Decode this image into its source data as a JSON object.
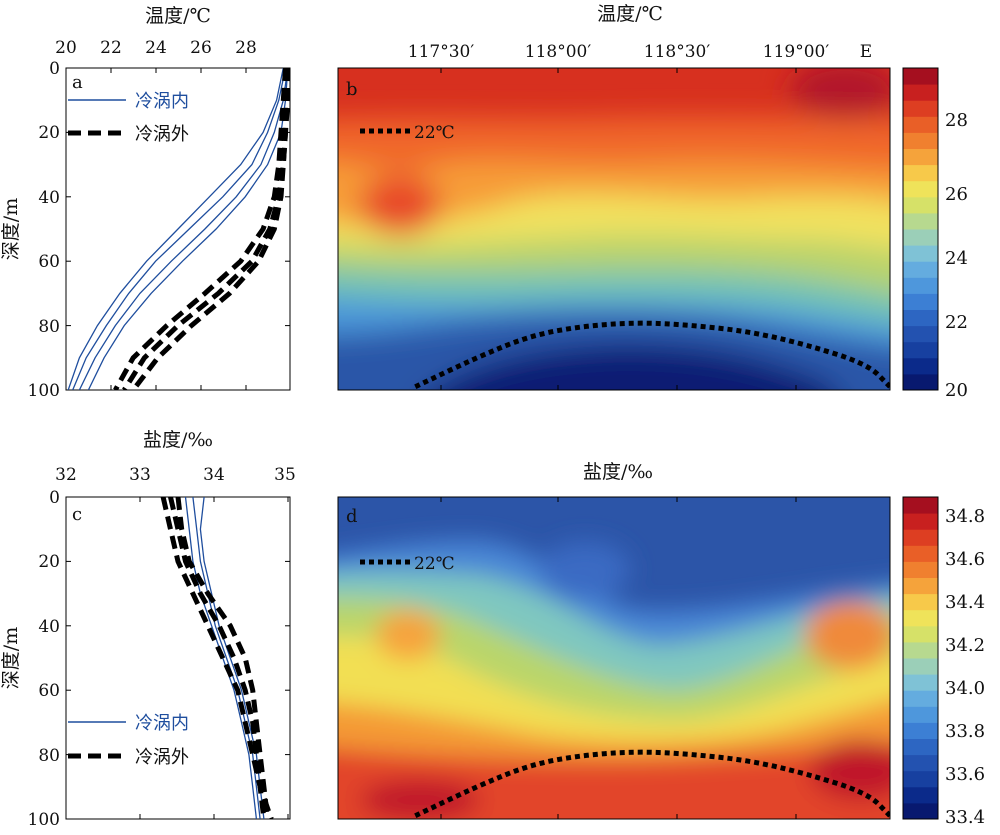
{
  "figure": {
    "panels": [
      {
        "id": "a",
        "letter": "a",
        "title": "温度/℃",
        "ylabel": "深度/m",
        "xticks": [
          "20",
          "22",
          "24",
          "26",
          "28"
        ]
      },
      {
        "id": "b",
        "letter": "b",
        "title": "温度/℃",
        "xticks": [
          "117°30′",
          "118°00′",
          "118°30′",
          "119°00′"
        ],
        "xunit": "E",
        "iso_label": "22℃"
      },
      {
        "id": "c",
        "letter": "c",
        "title": "盐度/‰",
        "ylabel": "深度/m",
        "xticks": [
          "32",
          "33",
          "34",
          "35"
        ]
      },
      {
        "id": "d",
        "letter": "d",
        "title": "盐度/‰",
        "iso_label": "22℃"
      }
    ],
    "yticks": [
      "0",
      "20",
      "40",
      "60",
      "80",
      "100"
    ],
    "legend": {
      "inside": "冷涡内",
      "outside": "冷涡外"
    },
    "colorbar_temp": {
      "ticks": [
        "20",
        "22",
        "24",
        "26",
        "28"
      ]
    },
    "colorbar_sal": {
      "ticks": [
        "33.4",
        "33.6",
        "33.8",
        "34.0",
        "34.2",
        "34.4",
        "34.6",
        "34.8"
      ]
    }
  },
  "chart_data": [
    {
      "type": "line",
      "panel": "a",
      "xlabel": "温度/℃",
      "ylabel": "深度/m",
      "xlim": [
        20,
        30
      ],
      "ylim": [
        100,
        0
      ],
      "series": [
        {
          "name": "冷涡内",
          "color": "#1f4e9e",
          "dash": "solid",
          "profiles": [
            {
              "depth": [
                0,
                10,
                20,
                30,
                40,
                50,
                60,
                70,
                80,
                90,
                100
              ],
              "values": [
                29.8,
                29.5,
                29.0,
                28.3,
                27.0,
                25.5,
                24.0,
                22.8,
                21.8,
                20.9,
                20.3
              ]
            },
            {
              "depth": [
                0,
                10,
                20,
                30,
                40,
                50,
                60,
                70,
                80,
                90,
                100
              ],
              "values": [
                29.9,
                29.7,
                29.3,
                28.7,
                27.6,
                26.2,
                24.7,
                23.3,
                22.2,
                21.3,
                20.6
              ]
            },
            {
              "depth": [
                0,
                10,
                20,
                30,
                40,
                50,
                60,
                70,
                80,
                90,
                100
              ],
              "values": [
                29.9,
                29.8,
                29.6,
                29.0,
                28.0,
                26.7,
                25.2,
                23.8,
                22.6,
                21.7,
                21.0
              ]
            },
            {
              "depth": [
                0,
                10,
                20,
                30,
                40,
                50,
                60,
                70,
                80,
                90,
                100
              ],
              "values": [
                29.7,
                29.4,
                28.8,
                27.8,
                26.4,
                25.0,
                23.6,
                22.4,
                21.4,
                20.6,
                20.1
              ]
            }
          ]
        },
        {
          "name": "冷涡外",
          "color": "#000000",
          "dash": "dashed",
          "profiles": [
            {
              "depth": [
                0,
                10,
                20,
                30,
                40,
                50,
                60,
                70,
                80,
                90,
                100
              ],
              "values": [
                29.9,
                29.8,
                29.8,
                29.7,
                29.5,
                29.1,
                28.3,
                26.8,
                25.0,
                23.5,
                22.6
              ]
            },
            {
              "depth": [
                0,
                10,
                20,
                30,
                40,
                50,
                60,
                70,
                80,
                90,
                100
              ],
              "values": [
                29.8,
                29.7,
                29.6,
                29.5,
                29.3,
                28.8,
                27.8,
                26.2,
                24.5,
                23.0,
                22.2
              ]
            },
            {
              "depth": [
                0,
                10,
                20,
                30,
                40,
                50,
                60,
                70,
                80,
                90,
                100
              ],
              "values": [
                29.9,
                29.9,
                29.8,
                29.7,
                29.6,
                29.3,
                28.6,
                27.3,
                25.6,
                24.1,
                23.0
              ]
            }
          ]
        }
      ]
    },
    {
      "type": "heatmap",
      "panel": "b",
      "title": "温度/℃",
      "xticks": [
        "117°30′",
        "118°00′",
        "118°30′",
        "119°00′"
      ],
      "ylim": [
        100,
        0
      ],
      "colorbar_range": [
        20,
        30
      ],
      "isotherm": {
        "label": "22℃",
        "value": 22,
        "x": [
          0.14,
          0.25,
          0.35,
          0.45,
          0.55,
          0.65,
          0.75,
          0.85,
          0.96,
          1.0
        ],
        "depth": [
          99,
          90,
          83,
          80,
          79,
          80,
          82,
          86,
          92,
          99
        ]
      }
    },
    {
      "type": "line",
      "panel": "c",
      "xlabel": "盐度/‰",
      "ylabel": "深度/m",
      "xlim": [
        32,
        35
      ],
      "ylim": [
        100,
        0
      ],
      "series": [
        {
          "name": "冷涡内",
          "color": "#1f4e9e",
          "dash": "solid",
          "profiles": [
            {
              "depth": [
                0,
                10,
                20,
                30,
                40,
                50,
                60,
                70,
                80,
                90,
                100
              ],
              "values": [
                33.7,
                33.75,
                33.8,
                33.9,
                34.0,
                34.15,
                34.3,
                34.4,
                34.5,
                34.55,
                34.6
              ]
            },
            {
              "depth": [
                0,
                10,
                20,
                30,
                40,
                50,
                60,
                70,
                80,
                90,
                100
              ],
              "values": [
                33.6,
                33.65,
                33.7,
                33.8,
                33.95,
                34.1,
                34.25,
                34.35,
                34.45,
                34.5,
                34.55
              ]
            },
            {
              "depth": [
                0,
                10,
                20,
                30,
                40,
                50,
                60,
                70,
                80,
                90,
                100
              ],
              "values": [
                33.85,
                33.8,
                33.85,
                33.95,
                34.05,
                34.2,
                34.35,
                34.45,
                34.55,
                34.6,
                34.65
              ]
            }
          ]
        },
        {
          "name": "冷涡外",
          "color": "#000000",
          "dash": "dashed",
          "profiles": [
            {
              "depth": [
                0,
                10,
                20,
                30,
                40,
                50,
                60,
                70,
                80,
                90,
                100
              ],
              "values": [
                33.3,
                33.4,
                33.5,
                33.7,
                33.9,
                34.1,
                34.3,
                34.4,
                34.5,
                34.6,
                34.75
              ]
            },
            {
              "depth": [
                0,
                10,
                20,
                30,
                40,
                50,
                60,
                70,
                80,
                90,
                100
              ],
              "values": [
                33.5,
                33.55,
                33.65,
                33.9,
                34.2,
                34.4,
                34.5,
                34.55,
                34.6,
                34.65,
                34.7
              ]
            },
            {
              "depth": [
                0,
                10,
                20,
                30,
                40,
                50,
                60,
                70,
                80,
                90,
                100
              ],
              "values": [
                33.4,
                33.5,
                33.6,
                33.8,
                34.05,
                34.25,
                34.4,
                34.5,
                34.55,
                34.6,
                34.65
              ]
            }
          ]
        }
      ]
    },
    {
      "type": "heatmap",
      "panel": "d",
      "title": "盐度/‰",
      "ylim": [
        100,
        0
      ],
      "colorbar_range": [
        33.4,
        34.9
      ],
      "isotherm": {
        "label": "22℃",
        "value": 22,
        "x": [
          0.14,
          0.25,
          0.35,
          0.45,
          0.55,
          0.65,
          0.75,
          0.85,
          0.96,
          1.0
        ],
        "depth": [
          99,
          90,
          83,
          80,
          79,
          80,
          82,
          86,
          92,
          99
        ]
      }
    }
  ]
}
